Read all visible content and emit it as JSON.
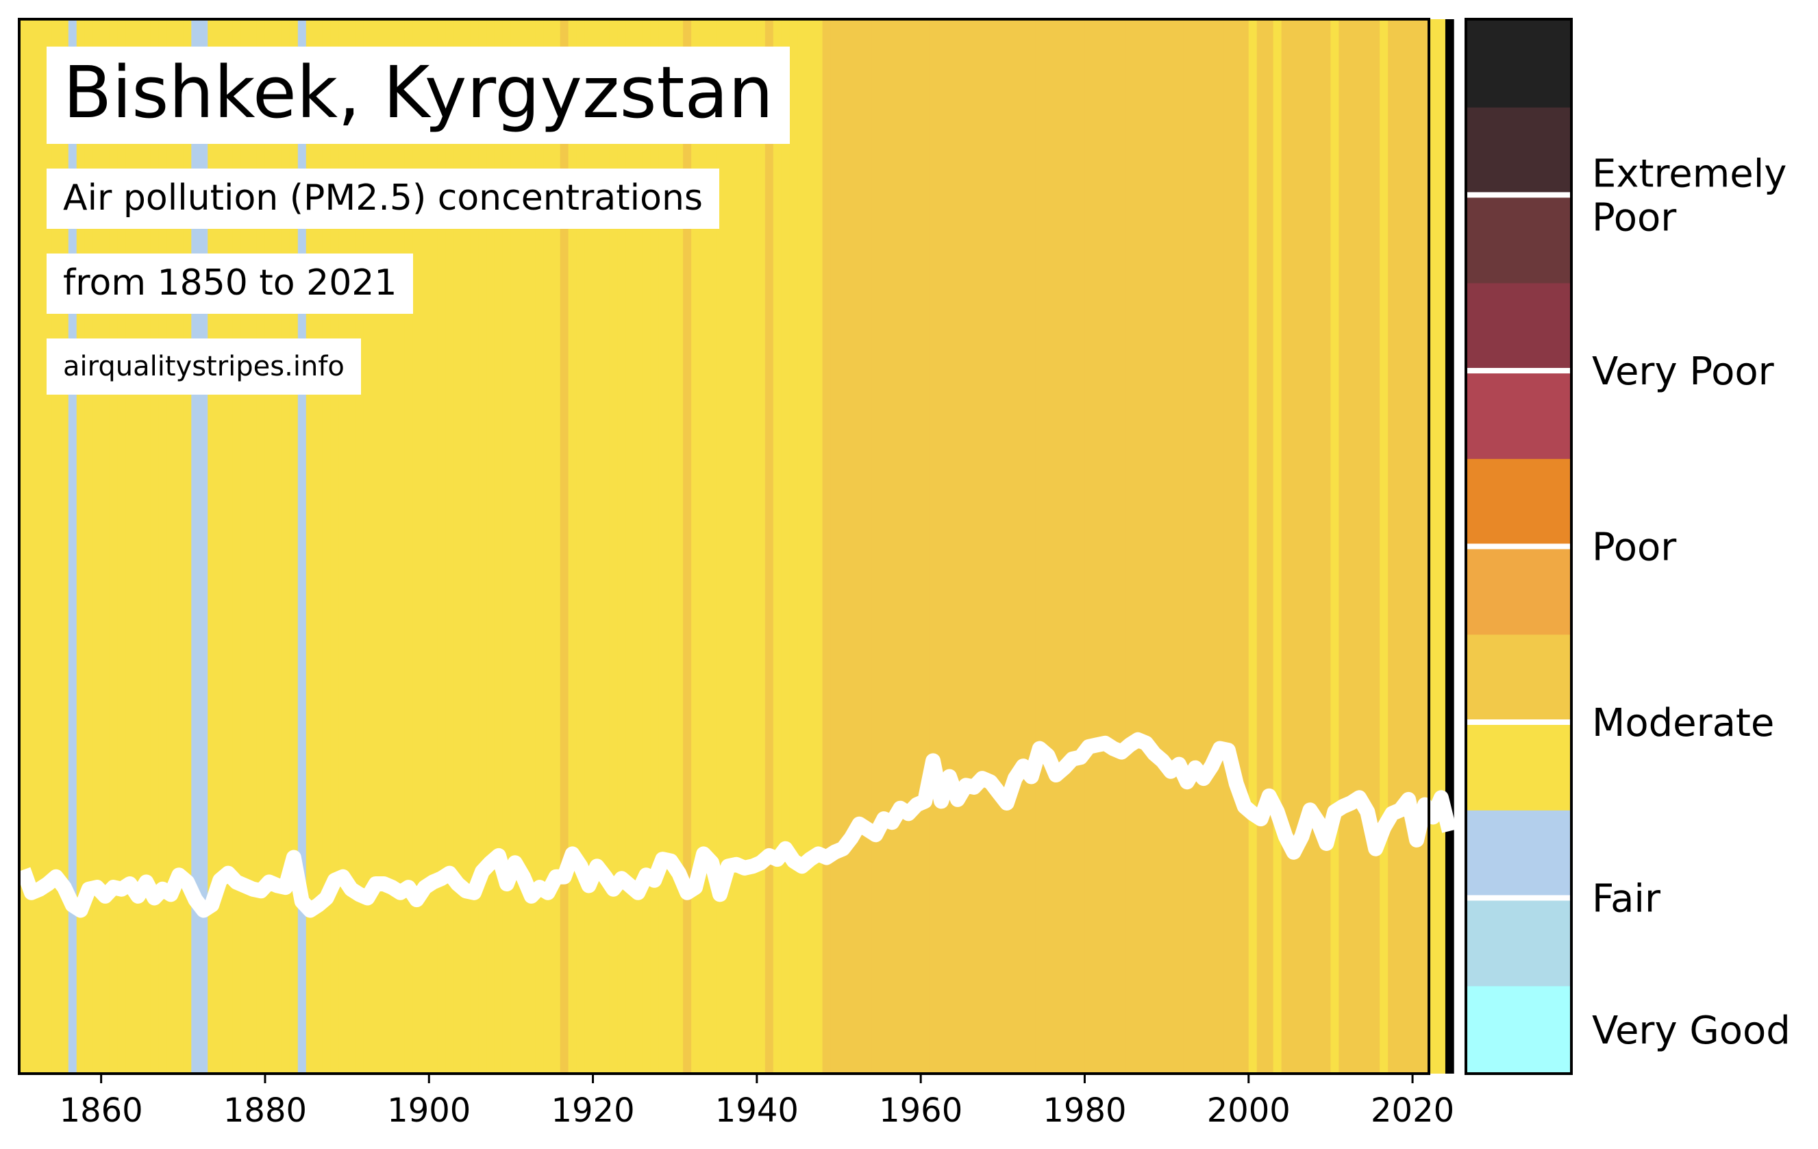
{
  "chart_data": {
    "type": "line",
    "title": "Bishkek, Kyrgyzstan",
    "subtitle": "Air pollution (PM2.5) concentrations",
    "period": "from 1850 to 2021",
    "source": "airqualitystripes.info",
    "x_start": 1850,
    "xlim": [
      1850,
      2022
    ],
    "x_ticks": [
      "1860",
      "1880",
      "1900",
      "1920",
      "1940",
      "1960",
      "1980",
      "2000",
      "2020"
    ],
    "ylim": [
      0,
      60
    ],
    "series": [
      {
        "values": [
          11.6,
          10.3,
          10.5,
          10.8,
          11.2,
          10.6,
          9.6,
          9.3,
          10.5,
          10.6,
          10.1,
          10.6,
          10.5,
          10.8,
          10.1,
          10.9,
          10.0,
          10.5,
          10.2,
          11.3,
          10.9,
          9.9,
          9.3,
          9.6,
          11.0,
          11.4,
          10.9,
          10.7,
          10.5,
          10.4,
          10.9,
          10.7,
          10.6,
          12.3,
          9.8,
          9.3,
          9.6,
          10.0,
          11.0,
          11.2,
          10.5,
          10.2,
          10.0,
          10.8,
          10.8,
          10.6,
          10.3,
          10.6,
          9.9,
          10.6,
          10.9,
          11.1,
          11.4,
          10.8,
          10.4,
          10.3,
          11.5,
          12.0,
          12.4,
          10.8,
          12.0,
          11.2,
          10.1,
          10.6,
          10.3,
          11.2,
          11.2,
          12.5,
          11.8,
          10.7,
          11.8,
          11.2,
          10.5,
          11.1,
          10.7,
          10.3,
          11.3,
          11.0,
          12.2,
          12.1,
          11.4,
          10.3,
          10.6,
          12.5,
          12.0,
          10.2,
          11.8,
          11.9,
          11.7,
          11.8,
          12.0,
          12.4,
          12.2,
          12.8,
          12.1,
          11.8,
          12.2,
          12.5,
          12.3,
          12.6,
          12.8,
          13.4,
          14.2,
          13.9,
          13.6,
          14.5,
          14.3,
          15.1,
          14.8,
          15.3,
          15.5,
          17.8,
          15.5,
          16.9,
          15.6,
          16.4,
          16.3,
          16.8,
          16.6,
          16.0,
          15.4,
          16.8,
          17.5,
          16.9,
          18.5,
          18.1,
          17.0,
          17.4,
          17.9,
          18.0,
          18.6,
          18.7,
          18.8,
          18.5,
          18.3,
          18.7,
          19.0,
          18.8,
          18.2,
          17.8,
          17.2,
          17.6,
          16.6,
          17.4,
          16.8,
          17.5,
          18.5,
          18.4,
          16.5,
          15.2,
          14.8,
          14.5,
          15.8,
          14.9,
          13.5,
          12.6,
          13.5,
          15.0,
          14.3,
          13.1,
          14.9,
          15.2,
          15.4,
          15.7,
          14.9,
          12.8,
          14.0,
          14.8,
          15.0,
          15.6,
          13.3,
          15.3,
          14.6,
          15.7,
          13.8
        ],
        "pm25_category": [
          "Moderate",
          "Moderate",
          "Moderate",
          "Moderate",
          "Moderate",
          "Moderate",
          "Fair",
          "Moderate",
          "Moderate",
          "Moderate",
          "Moderate",
          "Moderate",
          "Moderate",
          "Moderate",
          "Moderate",
          "Moderate",
          "Moderate",
          "Moderate",
          "Moderate",
          "Moderate",
          "Moderate",
          "Fair",
          "Fair",
          "Moderate",
          "Moderate",
          "Moderate",
          "Moderate",
          "Moderate",
          "Moderate",
          "Moderate",
          "Moderate",
          "Moderate",
          "Moderate",
          "Moderate",
          "Fair",
          "Moderate",
          "Moderate",
          "Moderate",
          "Moderate",
          "Moderate",
          "Moderate",
          "Moderate",
          "Moderate",
          "Moderate",
          "Moderate",
          "Moderate",
          "Moderate",
          "Moderate",
          "Moderate",
          "Moderate",
          "Moderate",
          "Moderate",
          "Moderate",
          "Moderate",
          "Moderate",
          "Moderate",
          "Moderate",
          "Moderate",
          "Moderate",
          "Moderate",
          "Moderate",
          "Moderate",
          "Moderate",
          "Moderate",
          "Moderate",
          "Moderate",
          "Moderate",
          "Moderate",
          "Moderate",
          "Moderate",
          "Moderate",
          "Moderate",
          "Moderate",
          "Moderate",
          "Moderate",
          "Moderate",
          "Moderate",
          "Moderate",
          "Moderate",
          "Moderate",
          "Moderate",
          "Moderate",
          "Moderate",
          "Moderate",
          "Moderate",
          "Moderate",
          "Moderate",
          "Moderate",
          "Moderate",
          "Moderate",
          "Moderate",
          "Moderate",
          "Moderate",
          "Moderate",
          "Moderate",
          "Moderate",
          "Moderate",
          "Moderate",
          "Moderate",
          "Moderate",
          "Moderate",
          "Moderate",
          "Moderate",
          "Moderate",
          "Moderate",
          "Moderate",
          "Moderate",
          "Moderate",
          "Moderate",
          "Moderate",
          "Moderate",
          "Moderate",
          "Moderate",
          "Moderate",
          "Moderate",
          "Moderate",
          "Moderate",
          "Moderate",
          "Moderate",
          "Moderate",
          "Moderate",
          "Moderate",
          "Moderate",
          "Moderate",
          "Moderate",
          "Moderate",
          "Moderate",
          "Moderate",
          "Moderate",
          "Moderate",
          "Moderate",
          "Moderate",
          "Moderate",
          "Moderate",
          "Moderate",
          "Moderate",
          "Moderate",
          "Moderate",
          "Moderate",
          "Moderate",
          "Moderate",
          "Moderate",
          "Moderate",
          "Moderate",
          "Moderate",
          "Moderate",
          "Moderate",
          "Moderate",
          "Moderate",
          "Moderate",
          "Moderate",
          "Moderate",
          "Moderate",
          "Moderate",
          "Moderate",
          "Moderate",
          "Moderate",
          "Moderate",
          "Moderate",
          "Moderate",
          "Moderate",
          "Moderate",
          "Moderate",
          "Moderate",
          "Moderate",
          "Moderate",
          "Moderate",
          "Moderate",
          "Moderate",
          "Moderate",
          "Moderate",
          "Moderate",
          "Moderate",
          "Moderate"
        ],
        "stripe_shade": [
          0,
          0,
          0,
          0,
          0,
          0,
          0,
          0,
          0,
          0,
          0,
          0,
          0,
          0,
          0,
          0,
          0,
          0,
          0,
          0,
          0,
          0,
          0,
          0,
          0,
          0,
          0,
          0,
          0,
          0,
          0,
          0,
          0,
          0,
          0,
          0,
          0,
          0,
          0,
          0,
          0,
          0,
          0,
          0,
          0,
          0,
          0,
          0,
          0,
          0,
          0,
          0,
          0,
          0,
          0,
          0,
          0,
          0,
          0,
          0,
          0,
          0,
          0,
          0,
          0,
          0,
          1,
          0,
          0,
          0,
          0,
          0,
          0,
          0,
          0,
          0,
          0,
          0,
          0,
          0,
          0,
          1,
          0,
          0,
          0,
          0,
          0,
          0,
          0,
          0,
          0,
          1,
          0,
          0,
          0,
          0,
          0,
          0,
          1,
          1,
          1,
          1,
          1,
          1,
          1,
          1,
          1,
          1,
          1,
          1,
          1,
          1,
          1,
          1,
          1,
          1,
          1,
          1,
          1,
          1,
          1,
          1,
          1,
          1,
          1,
          1,
          1,
          1,
          1,
          1,
          1,
          1,
          1,
          1,
          1,
          1,
          1,
          1,
          1,
          1,
          1,
          1,
          1,
          1,
          1,
          1,
          1,
          1,
          1,
          1,
          0,
          1,
          1,
          0,
          1,
          1,
          1,
          1,
          1,
          1,
          0,
          1,
          1,
          1,
          1,
          1,
          0,
          1,
          1,
          1,
          1,
          1
        ]
      }
    ],
    "stripe_colors": {
      "Fair": "#b3cfec",
      "Moderate": [
        "#f8e047",
        "#f2c94a"
      ]
    },
    "line_color": "#ffffff",
    "legend": {
      "segments": [
        {
          "color": "#a6ffff"
        },
        {
          "color": "#b0dbe9"
        },
        {
          "color": "#b3cfec"
        },
        {
          "color": "#f8e047"
        },
        {
          "color": "#f2c94a"
        },
        {
          "color": "#f0a944"
        },
        {
          "color": "#e88827"
        },
        {
          "color": "#b04653"
        },
        {
          "color": "#8a3845"
        },
        {
          "color": "#6b393b"
        },
        {
          "color": "#452d30"
        },
        {
          "color": "#222222"
        }
      ],
      "labels": [
        "Very Good",
        "Fair",
        "Moderate",
        "Poor",
        "Very Poor",
        "Extremely Poor"
      ]
    }
  }
}
